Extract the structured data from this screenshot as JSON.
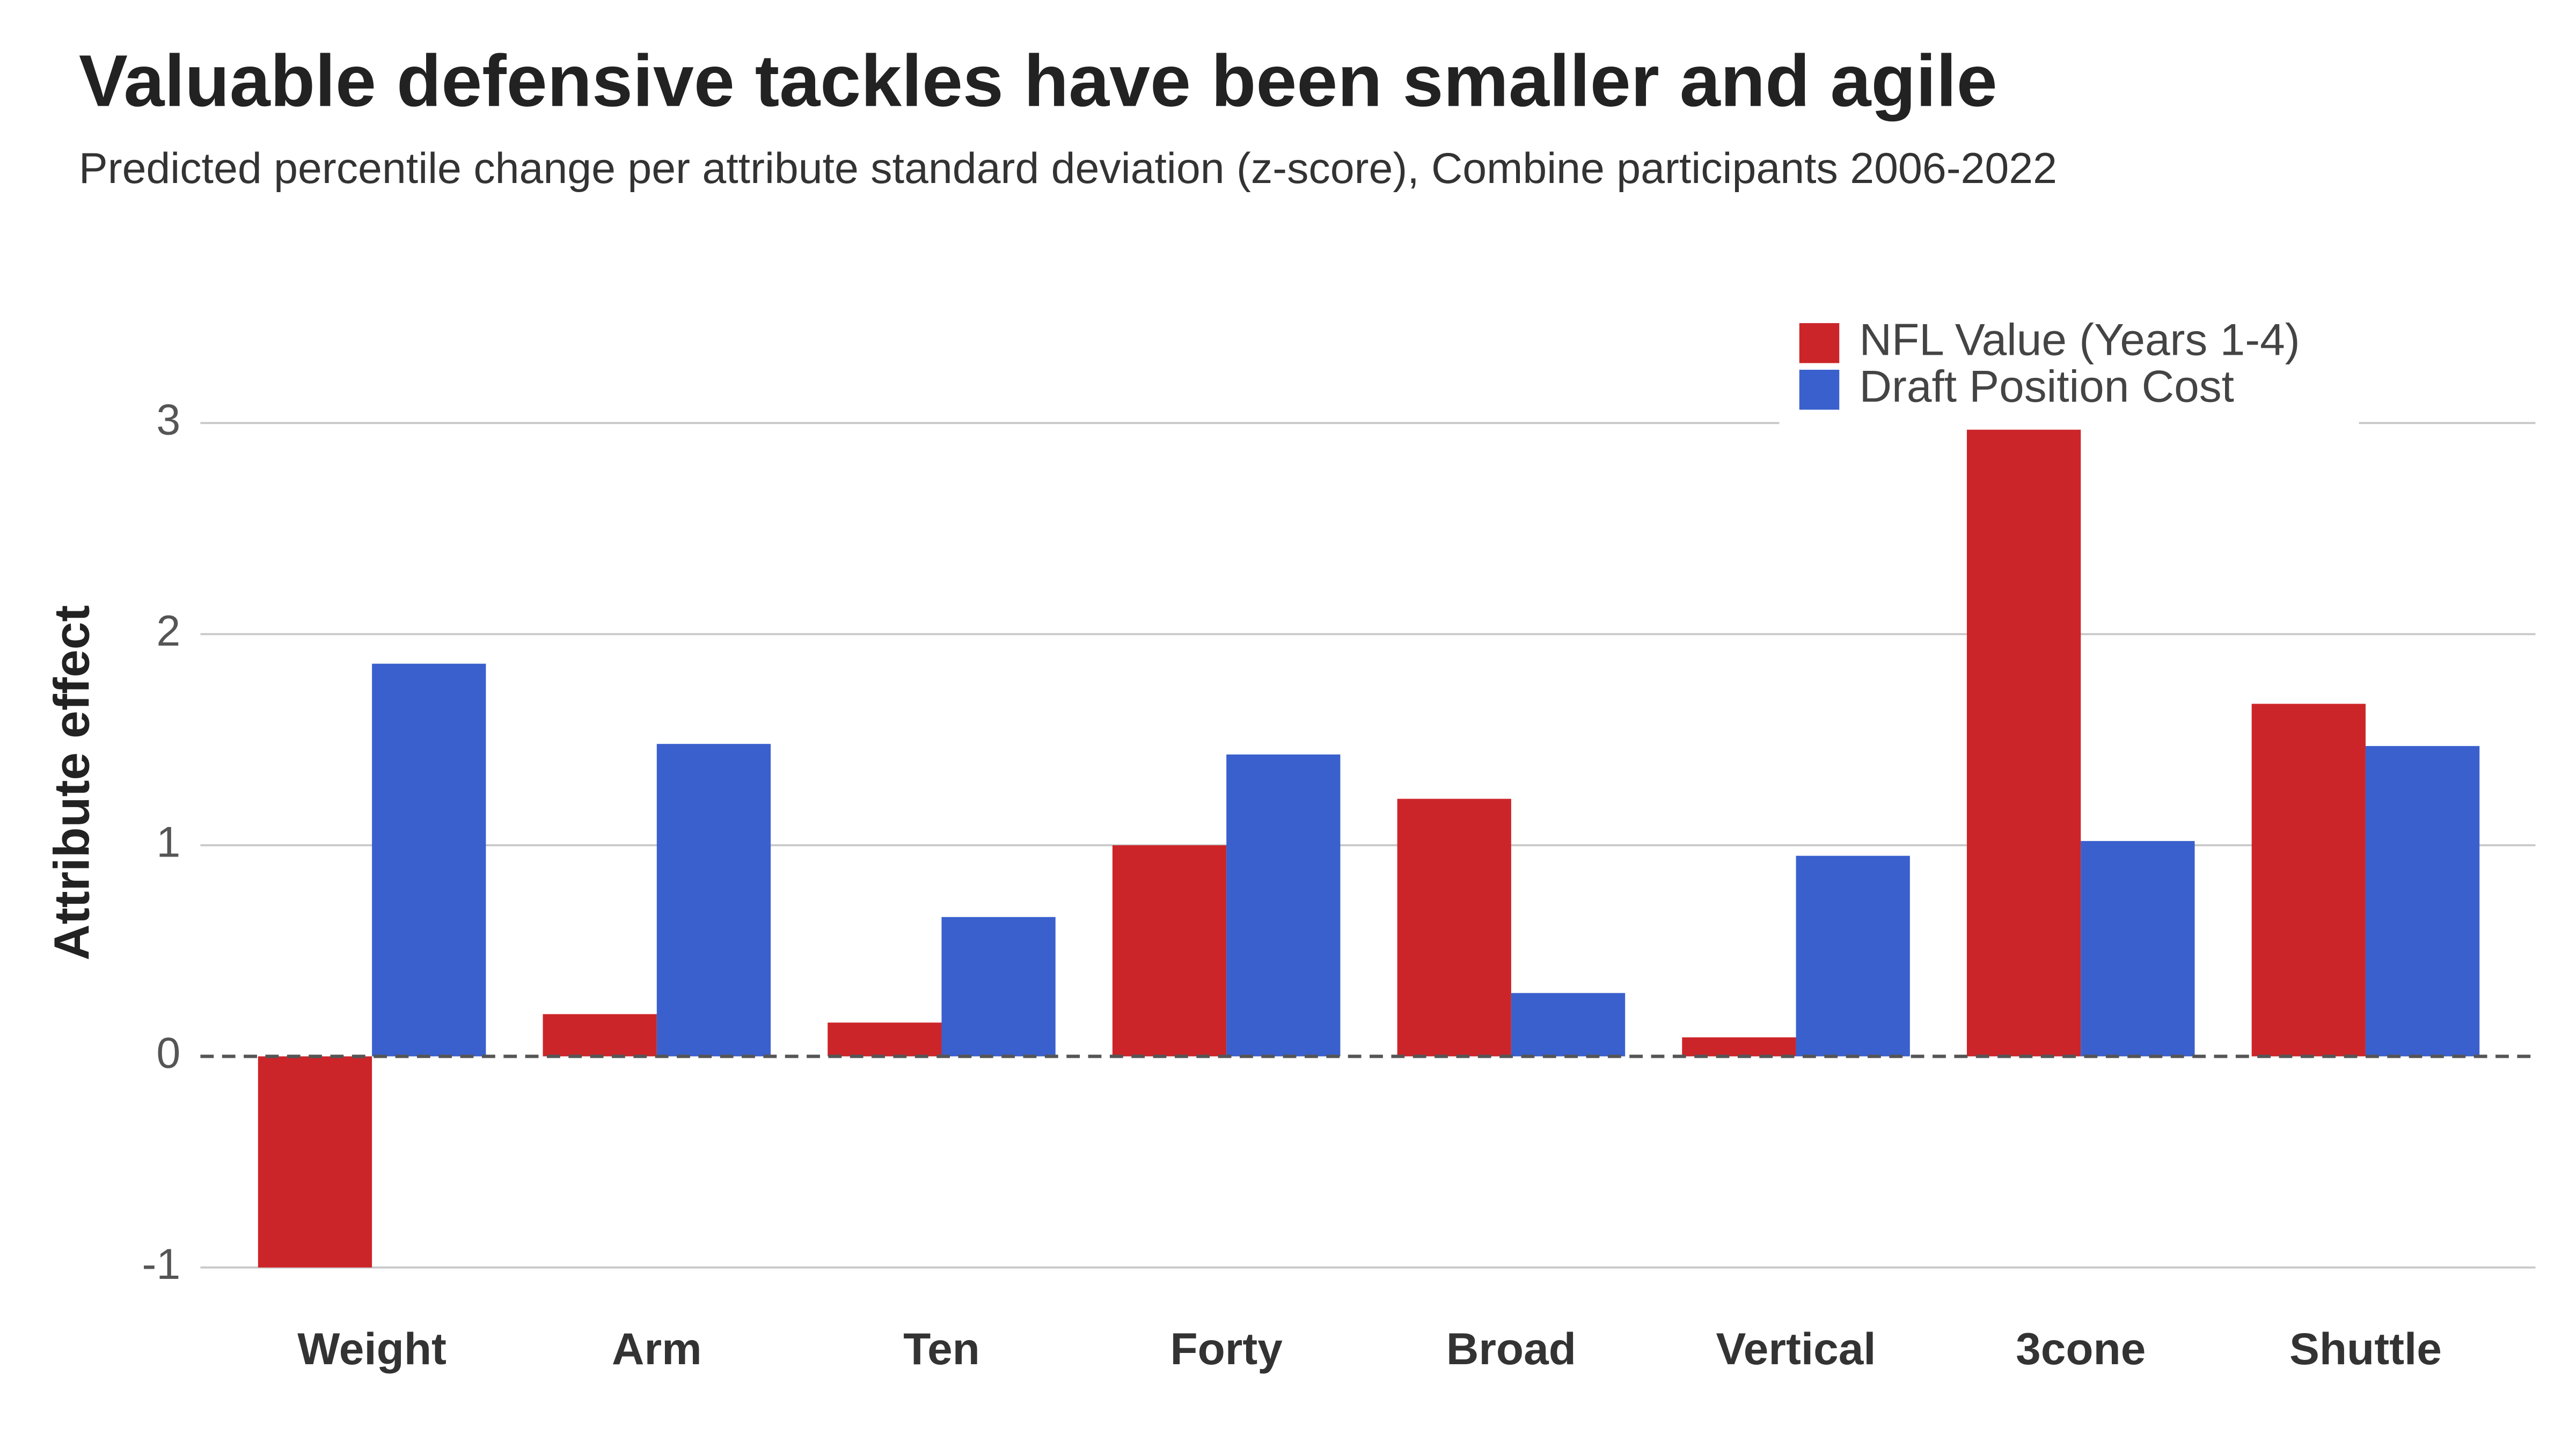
{
  "chart_data": {
    "type": "bar",
    "title": "Valuable defensive tackles have been smaller and agile",
    "subtitle": "Predicted percentile change per attribute standard deviation (z-score), Combine participants 2006-2022",
    "y_label": "Attribute effect",
    "categories": [
      "Weight",
      "Arm",
      "Ten",
      "Forty",
      "Broad",
      "Vertical",
      "3cone",
      "Shuttle"
    ],
    "series": [
      {
        "name": "NFL Value (Years 1-4)",
        "color": "#cc2529",
        "values": [
          -1.0,
          0.2,
          0.16,
          1.0,
          1.22,
          0.09,
          2.97,
          1.67
        ]
      },
      {
        "name": "Draft Position Cost",
        "color": "#3a60cd",
        "values": [
          1.86,
          1.48,
          0.66,
          1.43,
          0.3,
          0.95,
          1.02,
          1.47
        ]
      }
    ],
    "ylim": [
      -1,
      3
    ],
    "yticks": [
      -1,
      0,
      1,
      2,
      3
    ],
    "grid": true,
    "legend": "top-right"
  }
}
